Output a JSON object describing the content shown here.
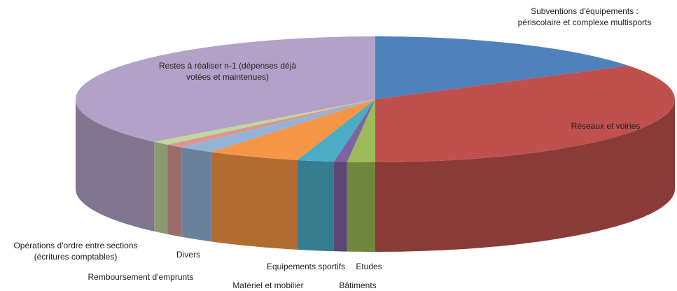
{
  "chart_data": {
    "type": "pie3d",
    "categories": [
      "Subventions d'équipements : périscolaire et complexe multisports",
      "Réseaux et voiries",
      "Etudes",
      "Bâtiments",
      "Equipements sportifs",
      "Matériel et mobilier",
      "Divers",
      "Remboursement d'emprunts",
      "Opérations d'ordre entre sections (écritures comptables)",
      "Restes à réaliser n-1 (dépenses déjà votées et maintenues)"
    ],
    "values": [
      16,
      34,
      1.5,
      0.7,
      2,
      5,
      2,
      1,
      1,
      36.8
    ],
    "colors": [
      "#4f81bd",
      "#c0504d",
      "#9bbb59",
      "#8064a2",
      "#4bacc6",
      "#f79646",
      "#95b3d7",
      "#d99694",
      "#c3d69b",
      "#b3a2c7"
    ]
  }
}
